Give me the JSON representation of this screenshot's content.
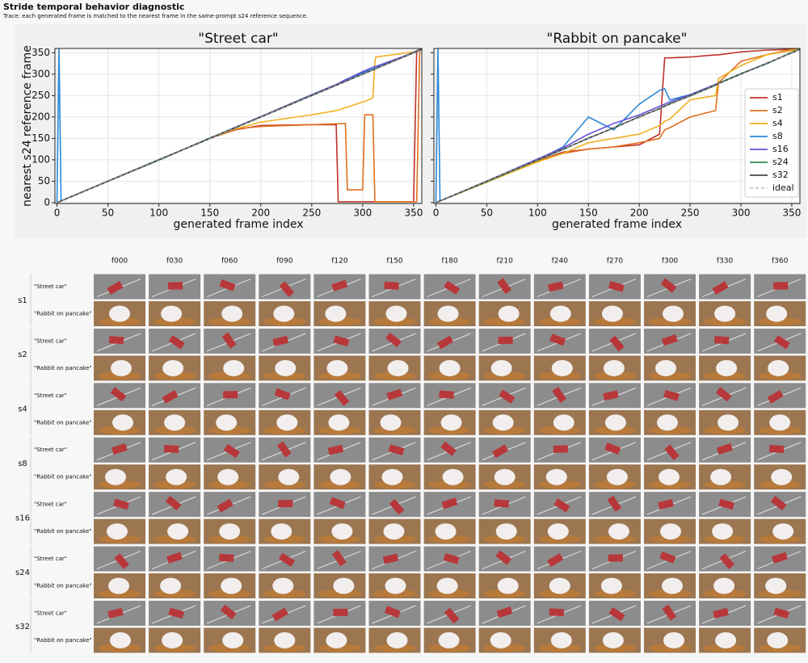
{
  "header": {
    "title": "Stride temporal behavior diagnostic",
    "subtitle": "Trace: each generated frame is matched to the nearest frame in the same-prompt s24 reference sequence."
  },
  "chart_data": [
    {
      "type": "line",
      "title": "\"Street car\"",
      "xlabel": "generated frame index",
      "ylabel": "nearest s24 reference frame",
      "x": [
        0,
        2,
        4,
        50,
        100,
        150,
        175,
        200,
        250,
        274,
        276,
        283,
        285,
        300,
        302,
        310,
        312,
        313,
        350,
        353,
        356,
        360
      ],
      "xlim": [
        -2,
        358
      ],
      "ylim": [
        -2,
        360
      ],
      "xticks": [
        0,
        50,
        100,
        150,
        200,
        250,
        300,
        350
      ],
      "yticks": [
        0,
        50,
        100,
        150,
        200,
        250,
        300,
        350
      ],
      "grid": true,
      "ytick_labels": true,
      "series": [
        {
          "name": "s1",
          "color": "#c0302b",
          "values": [
            0,
            2,
            4,
            50,
            100,
            150,
            170,
            180,
            182,
            182,
            2,
            2,
            2,
            2,
            2,
            2,
            2,
            2,
            2,
            355,
            358,
            360
          ]
        },
        {
          "name": "s2",
          "color": "#e07020",
          "values": [
            0,
            2,
            4,
            50,
            100,
            150,
            172,
            178,
            182,
            184,
            184,
            185,
            30,
            30,
            205,
            205,
            2,
            2,
            2,
            2,
            360,
            360
          ]
        },
        {
          "name": "s4",
          "color": "#f0b020",
          "values": [
            0,
            2,
            4,
            50,
            100,
            150,
            172,
            188,
            205,
            215,
            216,
            222,
            223,
            235,
            236,
            245,
            330,
            340,
            352,
            354,
            357,
            360
          ]
        },
        {
          "name": "s8",
          "color": "#2a88d8",
          "values": [
            0,
            360,
            4,
            50,
            100,
            150,
            175,
            200,
            251,
            275,
            277,
            285,
            287,
            303,
            305,
            312,
            314,
            315,
            351,
            354,
            357,
            360
          ]
        },
        {
          "name": "s16",
          "color": "#6a4fd8",
          "values": [
            0,
            2,
            4,
            50,
            100,
            150,
            176,
            201,
            252,
            276,
            278,
            287,
            289,
            306,
            308,
            316,
            318,
            318,
            350,
            353,
            356,
            360
          ]
        },
        {
          "name": "s24",
          "color": "#2e8b57",
          "values": [
            0,
            2,
            4,
            50,
            99,
            151,
            175,
            200,
            251,
            274,
            276,
            283,
            285,
            300,
            302,
            310,
            312,
            313,
            350,
            353,
            356,
            360
          ]
        },
        {
          "name": "s32",
          "color": "#444444",
          "values": [
            0,
            2,
            4,
            50,
            100,
            150,
            175,
            200,
            250,
            274,
            276,
            283,
            285,
            300,
            302,
            310,
            312,
            313,
            350,
            353,
            356,
            360
          ]
        },
        {
          "name": "ideal",
          "color": "#999999",
          "dashed": true,
          "values": [
            0,
            2,
            4,
            50,
            100,
            150,
            175,
            200,
            250,
            274,
            276,
            283,
            285,
            300,
            302,
            310,
            312,
            313,
            350,
            353,
            356,
            360
          ]
        }
      ]
    },
    {
      "type": "line",
      "title": "\"Rabbit on pancake\"",
      "xlabel": "generated frame index",
      "x": [
        0,
        2,
        4,
        50,
        100,
        125,
        150,
        175,
        200,
        220,
        225,
        230,
        250,
        275,
        278,
        300,
        325,
        350,
        360
      ],
      "xlim": [
        -2,
        358
      ],
      "ylim": [
        -2,
        360
      ],
      "xticks": [
        0,
        50,
        100,
        150,
        200,
        250,
        300,
        350
      ],
      "yticks": [
        0,
        50,
        100,
        150,
        200,
        250,
        300,
        350
      ],
      "grid": true,
      "ytick_labels": false,
      "legend": "right",
      "series": [
        {
          "name": "s1",
          "color": "#c0302b",
          "values": [
            0,
            2,
            4,
            48,
            97,
            118,
            125,
            130,
            135,
            160,
            338,
            338,
            340,
            345,
            345,
            352,
            356,
            358,
            360
          ]
        },
        {
          "name": "s2",
          "color": "#e07020",
          "values": [
            0,
            2,
            4,
            48,
            97,
            115,
            125,
            130,
            140,
            150,
            170,
            175,
            200,
            215,
            280,
            330,
            345,
            358,
            360
          ]
        },
        {
          "name": "s4",
          "color": "#f0b020",
          "values": [
            0,
            2,
            4,
            48,
            95,
            115,
            140,
            150,
            160,
            180,
            190,
            195,
            240,
            250,
            290,
            320,
            345,
            355,
            360
          ]
        },
        {
          "name": "s8",
          "color": "#2a88d8",
          "values": [
            0,
            360,
            4,
            50,
            100,
            130,
            200,
            170,
            230,
            262,
            266,
            240,
            252,
            276,
            279,
            301,
            325,
            350,
            360
          ]
        },
        {
          "name": "s16",
          "color": "#6a4fd8",
          "values": [
            0,
            2,
            4,
            50,
            102,
            128,
            160,
            185,
            205,
            225,
            230,
            235,
            252,
            276,
            279,
            301,
            325,
            350,
            360
          ]
        },
        {
          "name": "s24",
          "color": "#2e8b57",
          "values": [
            0,
            2,
            4,
            49,
            99,
            124,
            151,
            174,
            201,
            219,
            226,
            231,
            249,
            274,
            279,
            301,
            324,
            351,
            360
          ]
        },
        {
          "name": "s32",
          "color": "#444444",
          "values": [
            0,
            2,
            4,
            50,
            100,
            125,
            150,
            175,
            200,
            220,
            225,
            230,
            250,
            275,
            278,
            300,
            325,
            350,
            360
          ]
        },
        {
          "name": "ideal",
          "color": "#999999",
          "dashed": true,
          "values": [
            0,
            2,
            4,
            50,
            100,
            125,
            150,
            175,
            200,
            220,
            225,
            230,
            250,
            275,
            278,
            300,
            325,
            350,
            360
          ]
        }
      ]
    }
  ],
  "grid": {
    "columns": [
      "f000",
      "f030",
      "f060",
      "f090",
      "f120",
      "f150",
      "f180",
      "f210",
      "f240",
      "f270",
      "f300",
      "f330",
      "f360"
    ],
    "rows": [
      "s1",
      "s2",
      "s4",
      "s8",
      "s16",
      "s24",
      "s32"
    ],
    "prompts": [
      "\"Street car\"",
      "\"Rabbit on pancake\""
    ]
  }
}
